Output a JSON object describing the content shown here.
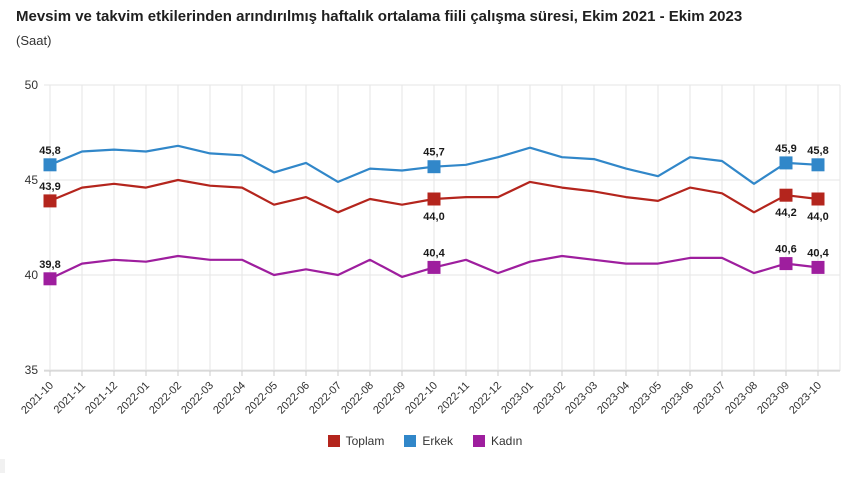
{
  "header": {
    "title": "Mevsim ve takvim etkilerinden arındırılmış haftalık ortalama fiili çalışma süresi, Ekim 2021 - Ekim 2023",
    "subtitle": "(Saat)"
  },
  "chart_data": {
    "type": "line",
    "title": "Mevsim ve takvim etkilerinden arındırılmış haftalık ortalama fiili çalışma süresi, Ekim 2021 - Ekim 2023",
    "ylabel": "(Saat)",
    "ylim": [
      35,
      50
    ],
    "yticks": [
      35,
      40,
      45,
      50
    ],
    "grid": true,
    "legend_position": "bottom",
    "decimal_separator": ",",
    "x": [
      "2021-10",
      "2021-11",
      "2021-12",
      "2022-01",
      "2022-02",
      "2022-03",
      "2022-04",
      "2022-05",
      "2022-06",
      "2022-07",
      "2022-08",
      "2022-09",
      "2022-10",
      "2022-11",
      "2022-12",
      "2023-01",
      "2023-02",
      "2023-03",
      "2023-04",
      "2023-05",
      "2023-06",
      "2023-07",
      "2023-08",
      "2023-09",
      "2023-10"
    ],
    "series": [
      {
        "name": "Toplam",
        "key": "toplam",
        "color": "#b4251d",
        "values": [
          43.9,
          44.6,
          44.8,
          44.6,
          45.0,
          44.7,
          44.6,
          43.7,
          44.1,
          43.3,
          44.0,
          43.7,
          44.0,
          44.1,
          44.1,
          44.9,
          44.6,
          44.4,
          44.1,
          43.9,
          44.6,
          44.3,
          43.3,
          44.2,
          44.0
        ],
        "point_labels": [
          {
            "index": 0,
            "text": "43,9",
            "position": "above"
          },
          {
            "index": 12,
            "text": "44,0",
            "position": "below"
          },
          {
            "index": 23,
            "text": "44,2",
            "position": "below"
          },
          {
            "index": 24,
            "text": "44,0",
            "position": "below"
          }
        ]
      },
      {
        "name": "Erkek",
        "key": "erkek",
        "color": "#3187c9",
        "values": [
          45.8,
          46.5,
          46.6,
          46.5,
          46.8,
          46.4,
          46.3,
          45.4,
          45.9,
          44.9,
          45.6,
          45.5,
          45.7,
          45.8,
          46.2,
          46.7,
          46.2,
          46.1,
          45.6,
          45.2,
          46.2,
          46.0,
          44.8,
          45.9,
          45.8
        ],
        "point_labels": [
          {
            "index": 0,
            "text": "45,8",
            "position": "above"
          },
          {
            "index": 12,
            "text": "45,7",
            "position": "above"
          },
          {
            "index": 23,
            "text": "45,9",
            "position": "above"
          },
          {
            "index": 24,
            "text": "45,8",
            "position": "above"
          }
        ]
      },
      {
        "name": "Kadın",
        "key": "kadin",
        "color": "#9e1e9e",
        "values": [
          39.8,
          40.6,
          40.8,
          40.7,
          41.0,
          40.8,
          40.8,
          40.0,
          40.3,
          40.0,
          40.8,
          39.9,
          40.4,
          40.8,
          40.1,
          40.7,
          41.0,
          40.8,
          40.6,
          40.6,
          40.9,
          40.9,
          40.1,
          40.6,
          40.4
        ],
        "point_labels": [
          {
            "index": 0,
            "text": "39,8",
            "position": "above"
          },
          {
            "index": 12,
            "text": "40,4",
            "position": "above"
          },
          {
            "index": 23,
            "text": "40,6",
            "position": "above"
          },
          {
            "index": 24,
            "text": "40,4",
            "position": "above"
          }
        ]
      }
    ],
    "style": {
      "gridline_color": "#e6e6e6",
      "axis_line_color": "#cccccc",
      "axis_label_color": "#333333",
      "point_label_color": "#1a1a1a"
    }
  }
}
